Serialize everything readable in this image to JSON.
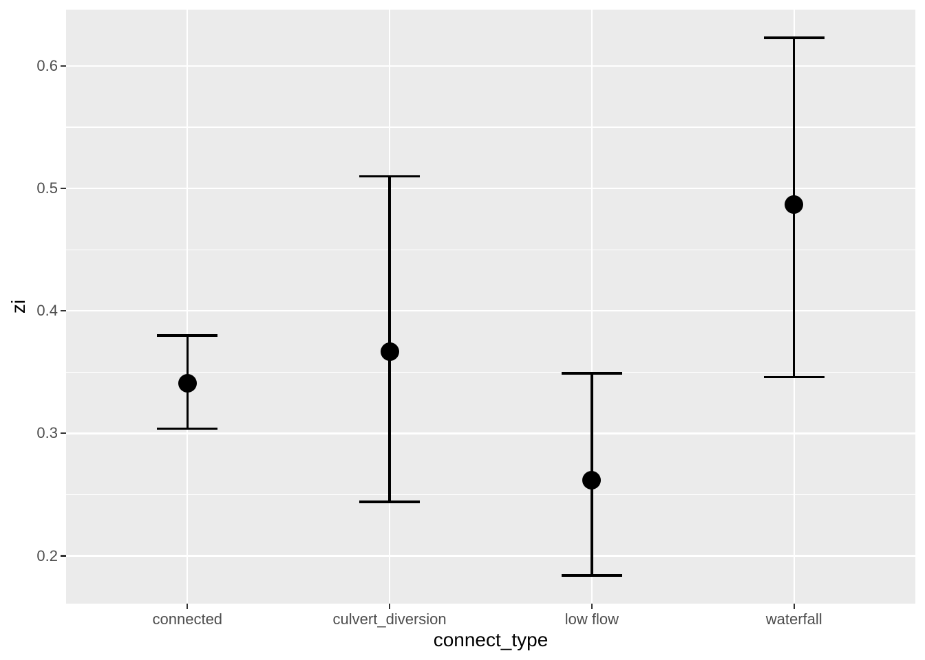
{
  "chart_data": {
    "type": "scatter",
    "style": "pointrange (point estimate with error bars), ggplot2 theme_gray",
    "title": "",
    "xlabel": "connect_type",
    "ylabel": "zi",
    "categories": [
      "connected",
      "culvert_diversion",
      "low flow",
      "waterfall"
    ],
    "series": [
      {
        "name": "estimate",
        "values": [
          0.341,
          0.367,
          0.262,
          0.487
        ]
      },
      {
        "name": "ci_lower",
        "values": [
          0.304,
          0.244,
          0.184,
          0.346
        ]
      },
      {
        "name": "ci_upper",
        "values": [
          0.38,
          0.51,
          0.349,
          0.623
        ]
      }
    ],
    "ylim": [
      0.161,
      0.646
    ],
    "y_major_ticks": [
      0.6,
      0.5,
      0.4,
      0.3,
      0.2
    ],
    "y_tick_labels": [
      "0.6",
      "0.5",
      "0.4",
      "0.3",
      "0.2"
    ],
    "y_minor_ticks": [
      0.55,
      0.45,
      0.35,
      0.25
    ],
    "grid": "white horizontal major+minor, white vertical major at each category",
    "legend_position": "none",
    "colors": {
      "page_background": "#FFFFFF",
      "panel_background": "#EBEBEB",
      "gridline": "#FFFFFF",
      "point": "#000000",
      "errorbar": "#000000",
      "tick_mark": "#333333",
      "tick_label": "#4D4D4D",
      "axis_title": "#000000"
    }
  }
}
